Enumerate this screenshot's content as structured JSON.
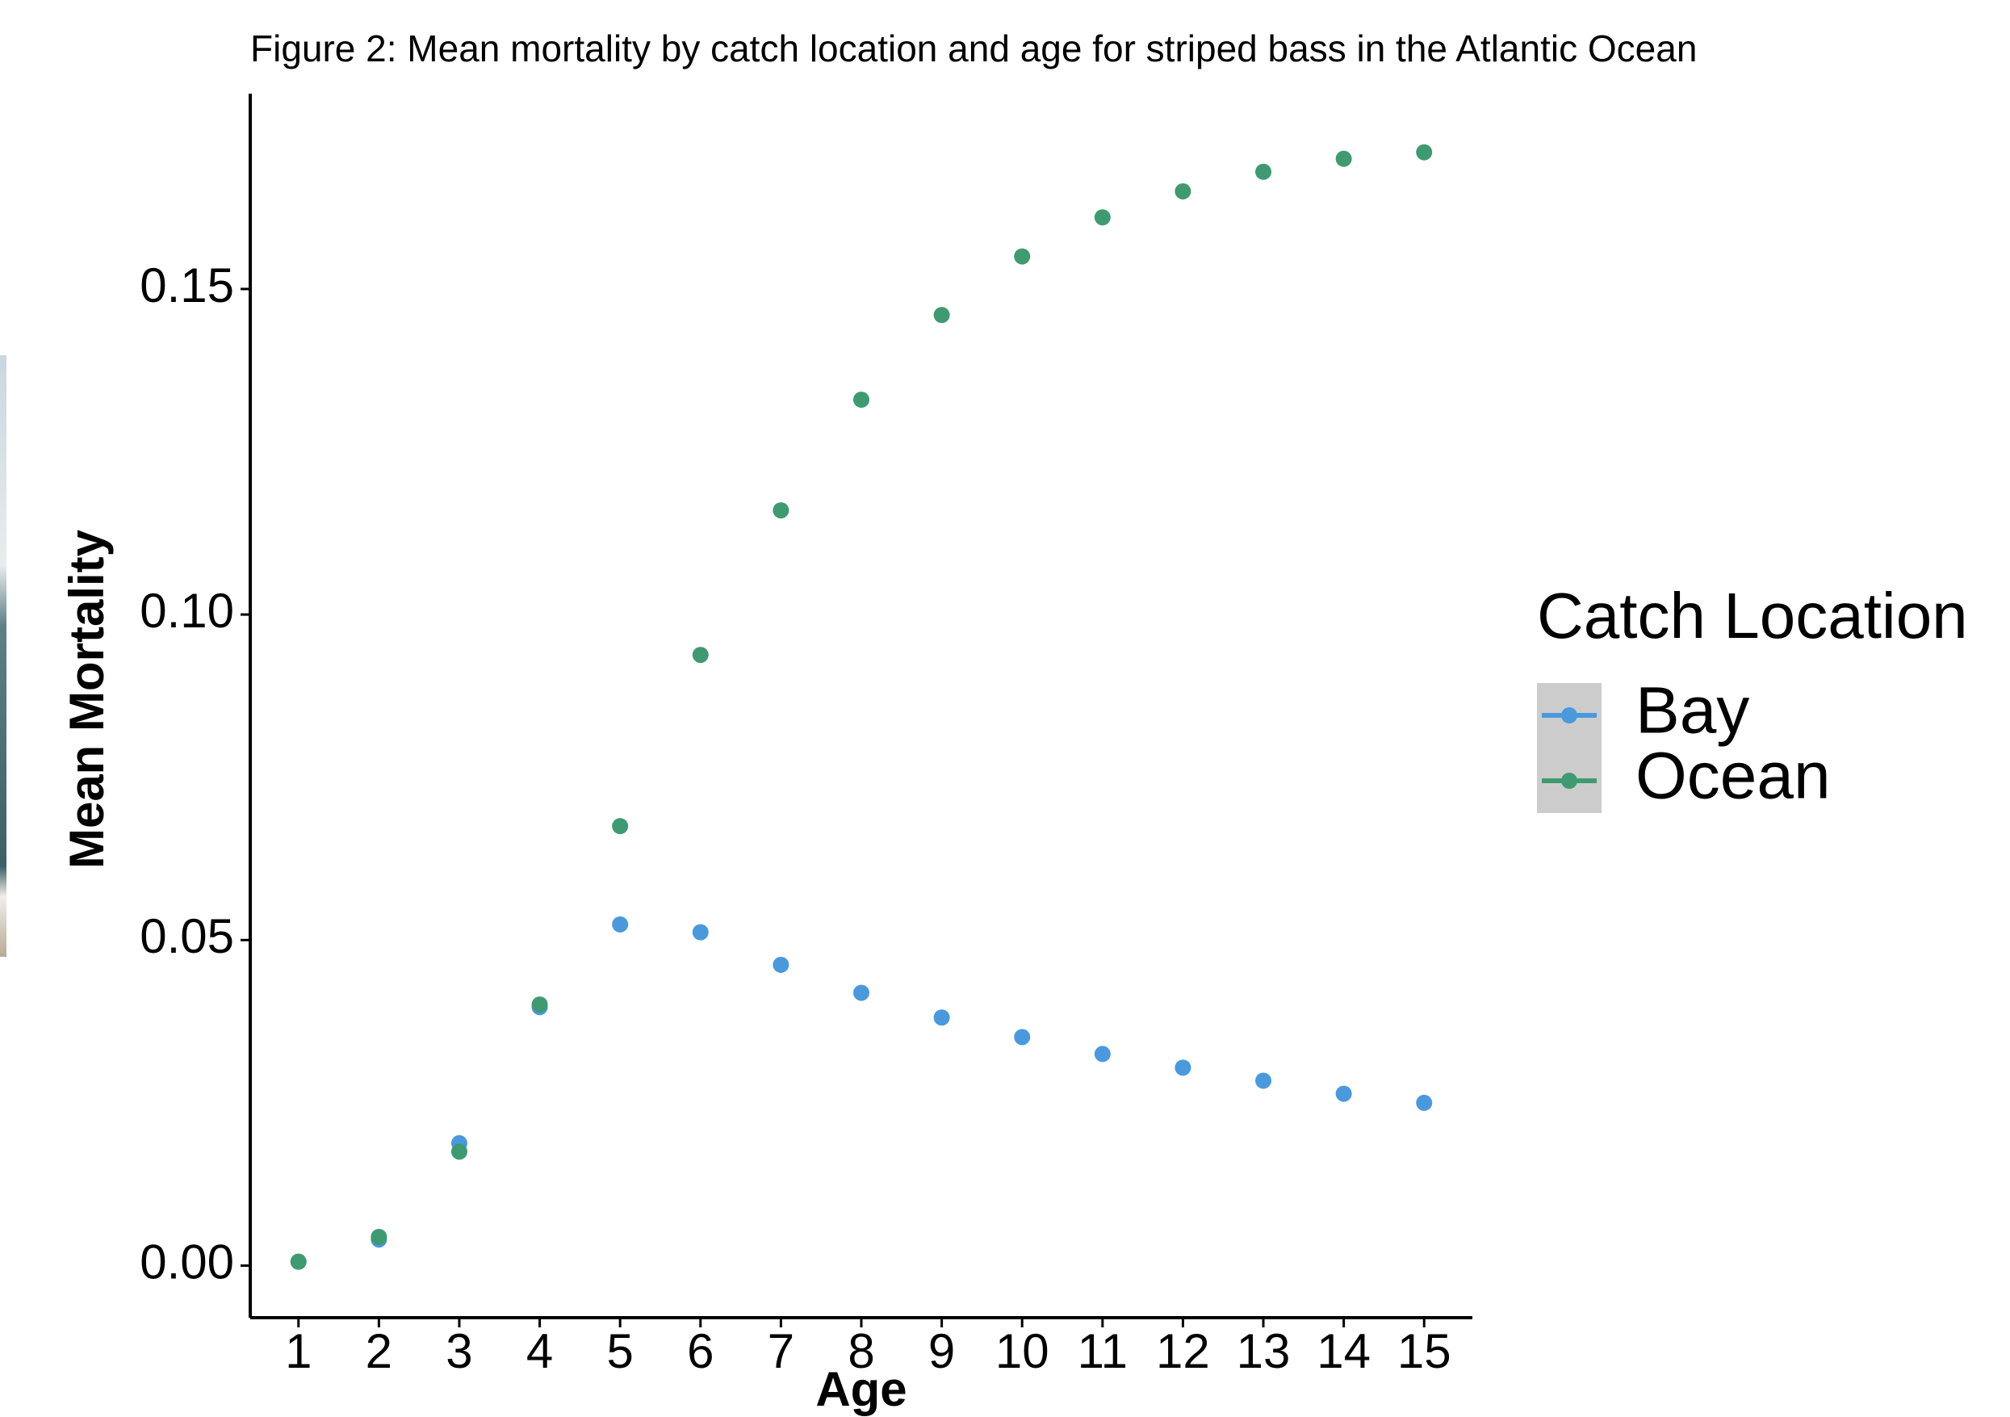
{
  "chart_data": {
    "type": "scatter",
    "title": "Figure 2: Mean mortality by catch location and age for striped bass in the Atlantic Ocean",
    "x_label": "Age",
    "y_label": "Mean Mortality",
    "legend_title": "Catch Location",
    "legend": "right",
    "x": [
      1,
      2,
      3,
      4,
      5,
      6,
      7,
      8,
      9,
      10,
      11,
      12,
      13,
      14,
      15
    ],
    "series": [
      {
        "name": "Bay",
        "color": "#4a99dd",
        "values": [
          0.0006,
          0.004,
          0.0188,
          0.0397,
          0.0524,
          0.0512,
          0.0462,
          0.0419,
          0.0381,
          0.0351,
          0.0325,
          0.0304,
          0.0284,
          0.0264,
          0.025
        ]
      },
      {
        "name": "Ocean",
        "color": "#3f9a71",
        "values": [
          0.0006,
          0.0044,
          0.0175,
          0.0401,
          0.0675,
          0.0938,
          0.116,
          0.133,
          0.146,
          0.155,
          0.161,
          0.165,
          0.168,
          0.17,
          0.171
        ]
      }
    ],
    "xlim": [
      0.4,
      15.6
    ],
    "xticks": [
      1,
      2,
      3,
      4,
      5,
      6,
      7,
      8,
      9,
      10,
      11,
      12,
      13,
      14,
      15
    ],
    "ylim": [
      -0.008,
      0.18
    ],
    "yticks": [
      {
        "value": 0,
        "label": "0.00"
      },
      {
        "value": 0.05,
        "label": "0.05"
      },
      {
        "value": 0.1,
        "label": "0.10"
      },
      {
        "value": 0.15,
        "label": "0.15"
      }
    ],
    "grid": false
  }
}
